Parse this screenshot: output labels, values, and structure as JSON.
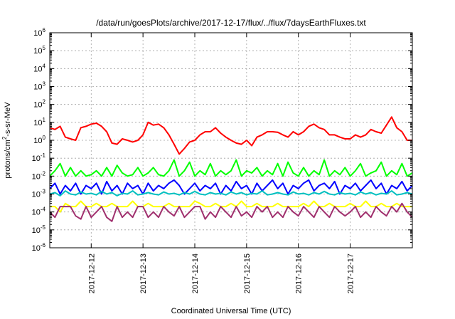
{
  "chart_data": {
    "type": "line",
    "title": "/data/run/goesPlots/archive/2017-12-17/flux/../flux/7daysEarthFluxes.txt",
    "xlabel": "Coordinated Universal Time (UTC)",
    "ylabel_parts": [
      "protons/cm",
      "2",
      "-s-sr-MeV"
    ],
    "y_scale": "log",
    "ylim": [
      1e-06,
      1000000.0
    ],
    "xlim": [
      0,
      7
    ],
    "y_ticks": [
      {
        "base": "10",
        "exp": "6"
      },
      {
        "base": "10",
        "exp": "5"
      },
      {
        "base": "10",
        "exp": "4"
      },
      {
        "base": "10",
        "exp": "3"
      },
      {
        "base": "10",
        "exp": "2"
      },
      {
        "base": "10",
        "exp": "1"
      },
      {
        "base": "10",
        "exp": "0"
      },
      {
        "base": "10",
        "exp": "-1"
      },
      {
        "base": "10",
        "exp": "-2"
      },
      {
        "base": "10",
        "exp": "-3"
      },
      {
        "base": "10",
        "exp": "-4"
      },
      {
        "base": "10",
        "exp": "-5"
      },
      {
        "base": "10",
        "exp": "-6"
      }
    ],
    "x_ticks": [
      {
        "label": "2017-12-12",
        "x": 0.8
      },
      {
        "label": "2017-12-13",
        "x": 1.8
      },
      {
        "label": "2017-12-14",
        "x": 2.8
      },
      {
        "label": "2017-12-15",
        "x": 3.8
      },
      {
        "label": "2017-12-16",
        "x": 4.8
      },
      {
        "label": "2017-12-17",
        "x": 5.8
      }
    ],
    "grid": true,
    "series": [
      {
        "color": "#ff0000",
        "x": [
          0.0,
          0.1,
          0.2,
          0.3,
          0.4,
          0.5,
          0.6,
          0.7,
          0.8,
          0.9,
          1.0,
          1.1,
          1.2,
          1.3,
          1.4,
          1.5,
          1.6,
          1.7,
          1.8,
          1.9,
          2.0,
          2.1,
          2.2,
          2.3,
          2.4,
          2.5,
          2.6,
          2.7,
          2.8,
          2.9,
          3.0,
          3.1,
          3.2,
          3.3,
          3.4,
          3.5,
          3.6,
          3.7,
          3.8,
          3.9,
          4.0,
          4.1,
          4.2,
          4.3,
          4.4,
          4.5,
          4.6,
          4.7,
          4.8,
          4.9,
          5.0,
          5.1,
          5.2,
          5.3,
          5.4,
          5.5,
          5.6,
          5.7,
          5.8,
          5.9,
          6.0,
          6.1,
          6.2,
          6.3,
          6.4,
          6.5,
          6.6,
          6.7,
          6.8,
          6.9,
          7.0
        ],
        "y": [
          5,
          4,
          6,
          1.5,
          1.2,
          1,
          5,
          6,
          8,
          9,
          6,
          3,
          0.7,
          0.6,
          1.2,
          1,
          0.8,
          1,
          2,
          10,
          7,
          8,
          5,
          2,
          0.6,
          0.17,
          0.35,
          0.8,
          1,
          2,
          3,
          3,
          5,
          2.5,
          1.5,
          1,
          0.7,
          0.6,
          1,
          0.5,
          1.5,
          2,
          3,
          3,
          2.8,
          2,
          1.5,
          3,
          2,
          3,
          6,
          8,
          5,
          4,
          2,
          2,
          1.5,
          1.2,
          1.2,
          2,
          1.5,
          2,
          4,
          3,
          2.5,
          7,
          20,
          5,
          3,
          1,
          1
        ]
      },
      {
        "color": "#00ff00",
        "x": [
          0.0,
          0.1,
          0.2,
          0.3,
          0.4,
          0.5,
          0.6,
          0.7,
          0.8,
          0.9,
          1.0,
          1.1,
          1.2,
          1.3,
          1.4,
          1.5,
          1.6,
          1.7,
          1.8,
          1.9,
          2.0,
          2.1,
          2.2,
          2.3,
          2.4,
          2.5,
          2.6,
          2.7,
          2.8,
          2.9,
          3.0,
          3.1,
          3.2,
          3.3,
          3.4,
          3.5,
          3.6,
          3.7,
          3.8,
          3.9,
          4.0,
          4.1,
          4.2,
          4.3,
          4.4,
          4.5,
          4.6,
          4.7,
          4.8,
          4.9,
          5.0,
          5.1,
          5.2,
          5.3,
          5.4,
          5.5,
          5.6,
          5.7,
          5.8,
          5.9,
          6.0,
          6.1,
          6.2,
          6.3,
          6.4,
          6.5,
          6.6,
          6.7,
          6.8,
          6.9,
          7.0
        ],
        "y": [
          0.01,
          0.02,
          0.05,
          0.01,
          0.03,
          0.01,
          0.02,
          0.01,
          0.012,
          0.02,
          0.01,
          0.03,
          0.01,
          0.04,
          0.015,
          0.01,
          0.012,
          0.03,
          0.01,
          0.015,
          0.03,
          0.012,
          0.01,
          0.02,
          0.08,
          0.01,
          0.02,
          0.06,
          0.01,
          0.02,
          0.012,
          0.05,
          0.01,
          0.02,
          0.012,
          0.02,
          0.08,
          0.01,
          0.02,
          0.015,
          0.03,
          0.01,
          0.02,
          0.012,
          0.05,
          0.01,
          0.06,
          0.015,
          0.01,
          0.03,
          0.01,
          0.02,
          0.012,
          0.08,
          0.01,
          0.02,
          0.012,
          0.03,
          0.01,
          0.02,
          0.05,
          0.01,
          0.015,
          0.02,
          0.06,
          0.01,
          0.02,
          0.012,
          0.05,
          0.01,
          0.015
        ]
      },
      {
        "color": "#0000ff",
        "x": [
          0.0,
          0.1,
          0.2,
          0.3,
          0.4,
          0.5,
          0.6,
          0.7,
          0.8,
          0.9,
          1.0,
          1.1,
          1.2,
          1.3,
          1.4,
          1.5,
          1.6,
          1.7,
          1.8,
          1.9,
          2.0,
          2.1,
          2.2,
          2.3,
          2.4,
          2.5,
          2.6,
          2.7,
          2.8,
          2.9,
          3.0,
          3.1,
          3.2,
          3.3,
          3.4,
          3.5,
          3.6,
          3.7,
          3.8,
          3.9,
          4.0,
          4.1,
          4.2,
          4.3,
          4.4,
          4.5,
          4.6,
          4.7,
          4.8,
          4.9,
          5.0,
          5.1,
          5.2,
          5.3,
          5.4,
          5.5,
          5.6,
          5.7,
          5.8,
          5.9,
          6.0,
          6.1,
          6.2,
          6.3,
          6.4,
          6.5,
          6.6,
          6.7,
          6.8,
          6.9,
          7.0
        ],
        "y": [
          0.002,
          0.004,
          0.001,
          0.003,
          0.0015,
          0.004,
          0.001,
          0.003,
          0.002,
          0.004,
          0.001,
          0.005,
          0.0015,
          0.003,
          0.001,
          0.004,
          0.002,
          0.003,
          0.001,
          0.004,
          0.0015,
          0.003,
          0.002,
          0.004,
          0.006,
          0.003,
          0.001,
          0.002,
          0.004,
          0.0015,
          0.003,
          0.002,
          0.004,
          0.001,
          0.003,
          0.0015,
          0.005,
          0.002,
          0.003,
          0.001,
          0.004,
          0.0015,
          0.003,
          0.006,
          0.002,
          0.004,
          0.001,
          0.003,
          0.002,
          0.004,
          0.006,
          0.0015,
          0.003,
          0.004,
          0.002,
          0.005,
          0.001,
          0.003,
          0.002,
          0.004,
          0.0015,
          0.003,
          0.006,
          0.002,
          0.004,
          0.001,
          0.003,
          0.002,
          0.005,
          0.0015,
          0.003
        ]
      },
      {
        "color": "#00c0c0",
        "x": [
          0.0,
          0.1,
          0.2,
          0.3,
          0.4,
          0.5,
          0.6,
          0.7,
          0.8,
          0.9,
          1.0,
          1.1,
          1.2,
          1.3,
          1.4,
          1.5,
          1.6,
          1.7,
          1.8,
          1.9,
          2.0,
          2.1,
          2.2,
          2.3,
          2.4,
          2.5,
          2.6,
          2.7,
          2.8,
          2.9,
          3.0,
          3.1,
          3.2,
          3.3,
          3.4,
          3.5,
          3.6,
          3.7,
          3.8,
          3.9,
          4.0,
          4.1,
          4.2,
          4.3,
          4.4,
          4.5,
          4.6,
          4.7,
          4.8,
          4.9,
          5.0,
          5.1,
          5.2,
          5.3,
          5.4,
          5.5,
          5.6,
          5.7,
          5.8,
          5.9,
          6.0,
          6.1,
          6.2,
          6.3,
          6.4,
          6.5,
          6.6,
          6.7,
          6.8,
          6.9,
          7.0
        ],
        "y": [
          0.001,
          0.0012,
          0.0008,
          0.0015,
          0.001,
          0.0009,
          0.0013,
          0.001,
          0.0011,
          0.0009,
          0.0014,
          0.001,
          0.0012,
          0.0008,
          0.0011,
          0.001,
          0.0015,
          0.0009,
          0.001,
          0.0012,
          0.001,
          0.0009,
          0.0013,
          0.001,
          0.0011,
          0.0009,
          0.0012,
          0.001,
          0.0014,
          0.001,
          0.0009,
          0.0012,
          0.001,
          0.0011,
          0.0009,
          0.0013,
          0.001,
          0.0012,
          0.0009,
          0.0011,
          0.001,
          0.0015,
          0.0009,
          0.001,
          0.0012,
          0.001,
          0.0009,
          0.0013,
          0.001,
          0.0011,
          0.0009,
          0.0012,
          0.001,
          0.0014,
          0.001,
          0.0009,
          0.0012,
          0.001,
          0.0011,
          0.0009,
          0.0013,
          0.001,
          0.0012,
          0.0009,
          0.0011,
          0.001,
          0.0015,
          0.0009,
          0.001,
          0.0012,
          0.001
        ]
      },
      {
        "color": "#ffff00",
        "x": [
          0.0,
          0.1,
          0.2,
          0.3,
          0.4,
          0.5,
          0.6,
          0.7,
          0.8,
          0.9,
          1.0,
          1.1,
          1.2,
          1.3,
          1.4,
          1.5,
          1.6,
          1.7,
          1.8,
          1.9,
          2.0,
          2.1,
          2.2,
          2.3,
          2.4,
          2.5,
          2.6,
          2.7,
          2.8,
          2.9,
          3.0,
          3.1,
          3.2,
          3.3,
          3.4,
          3.5,
          3.6,
          3.7,
          3.8,
          3.9,
          4.0,
          4.1,
          4.2,
          4.3,
          4.4,
          4.5,
          4.6,
          4.7,
          4.8,
          4.9,
          5.0,
          5.1,
          5.2,
          5.3,
          5.4,
          5.5,
          5.6,
          5.7,
          5.8,
          5.9,
          6.0,
          6.1,
          6.2,
          6.3,
          6.4,
          6.5,
          6.6,
          6.7,
          6.8,
          6.9,
          7.0
        ],
        "y": [
          0.0002,
          0.0002,
          0.0001,
          0.0003,
          0.0002,
          0.0002,
          0.0004,
          0.0002,
          0.0002,
          0.0003,
          0.0002,
          0.0002,
          0.0003,
          0.0002,
          0.0002,
          0.0002,
          0.0004,
          0.0002,
          0.0002,
          0.0003,
          0.0002,
          0.0002,
          0.0002,
          0.0003,
          0.0002,
          0.0002,
          0.0002,
          0.0002,
          0.0004,
          0.0003,
          0.0002,
          0.0002,
          0.0003,
          0.0002,
          0.0002,
          0.0003,
          0.0002,
          0.0004,
          0.0002,
          0.0002,
          0.0003,
          0.0002,
          0.0002,
          0.0002,
          0.0003,
          0.0002,
          0.0002,
          0.0002,
          0.0002,
          0.0003,
          0.0002,
          0.0004,
          0.0002,
          0.0002,
          0.0003,
          0.0002,
          0.0002,
          0.0002,
          0.0003,
          0.0002,
          0.0002,
          0.0004,
          0.0002,
          0.0002,
          0.0003,
          0.0002,
          0.0002,
          0.0003,
          0.0002,
          0.0002,
          0.0002
        ]
      },
      {
        "color": "#a0306e",
        "x": [
          0.0,
          0.1,
          0.2,
          0.3,
          0.4,
          0.5,
          0.6,
          0.7,
          0.8,
          0.9,
          1.0,
          1.1,
          1.2,
          1.3,
          1.4,
          1.5,
          1.6,
          1.7,
          1.8,
          1.9,
          2.0,
          2.1,
          2.2,
          2.3,
          2.4,
          2.5,
          2.6,
          2.7,
          2.8,
          2.9,
          3.0,
          3.1,
          3.2,
          3.3,
          3.4,
          3.5,
          3.6,
          3.7,
          3.8,
          3.9,
          4.0,
          4.1,
          4.2,
          4.3,
          4.4,
          4.5,
          4.6,
          4.7,
          4.8,
          4.9,
          5.0,
          5.1,
          5.2,
          5.3,
          5.4,
          5.5,
          5.6,
          5.7,
          5.8,
          5.9,
          6.0,
          6.1,
          6.2,
          6.3,
          6.4,
          6.5,
          6.6,
          6.7,
          6.8,
          6.9,
          7.0
        ],
        "y": [
          0.0001,
          5e-05,
          0.0002,
          0.0002,
          0.0002,
          6e-05,
          4e-05,
          0.0002,
          5e-05,
          0.0001,
          0.0002,
          5e-05,
          3e-05,
          0.0002,
          5e-05,
          0.0001,
          5e-05,
          0.0002,
          0.0002,
          5e-05,
          0.0001,
          5e-05,
          0.0002,
          0.0001,
          6e-05,
          0.0002,
          5e-05,
          0.0001,
          0.0002,
          0.0002,
          4e-05,
          0.0001,
          5e-05,
          0.0002,
          0.0001,
          5e-05,
          0.0002,
          6e-05,
          0.0001,
          5e-05,
          0.0002,
          0.0001,
          0.0002,
          5e-05,
          0.0001,
          5e-05,
          0.0002,
          0.0001,
          6e-05,
          0.0002,
          0.0001,
          5e-05,
          0.0002,
          0.0001,
          5e-05,
          0.0002,
          0.0001,
          6e-05,
          0.0001,
          0.0002,
          5e-05,
          0.0001,
          5e-05,
          0.0002,
          0.0001,
          6e-05,
          0.0002,
          0.0001,
          0.0003,
          0.0001,
          5e-05
        ]
      }
    ]
  }
}
